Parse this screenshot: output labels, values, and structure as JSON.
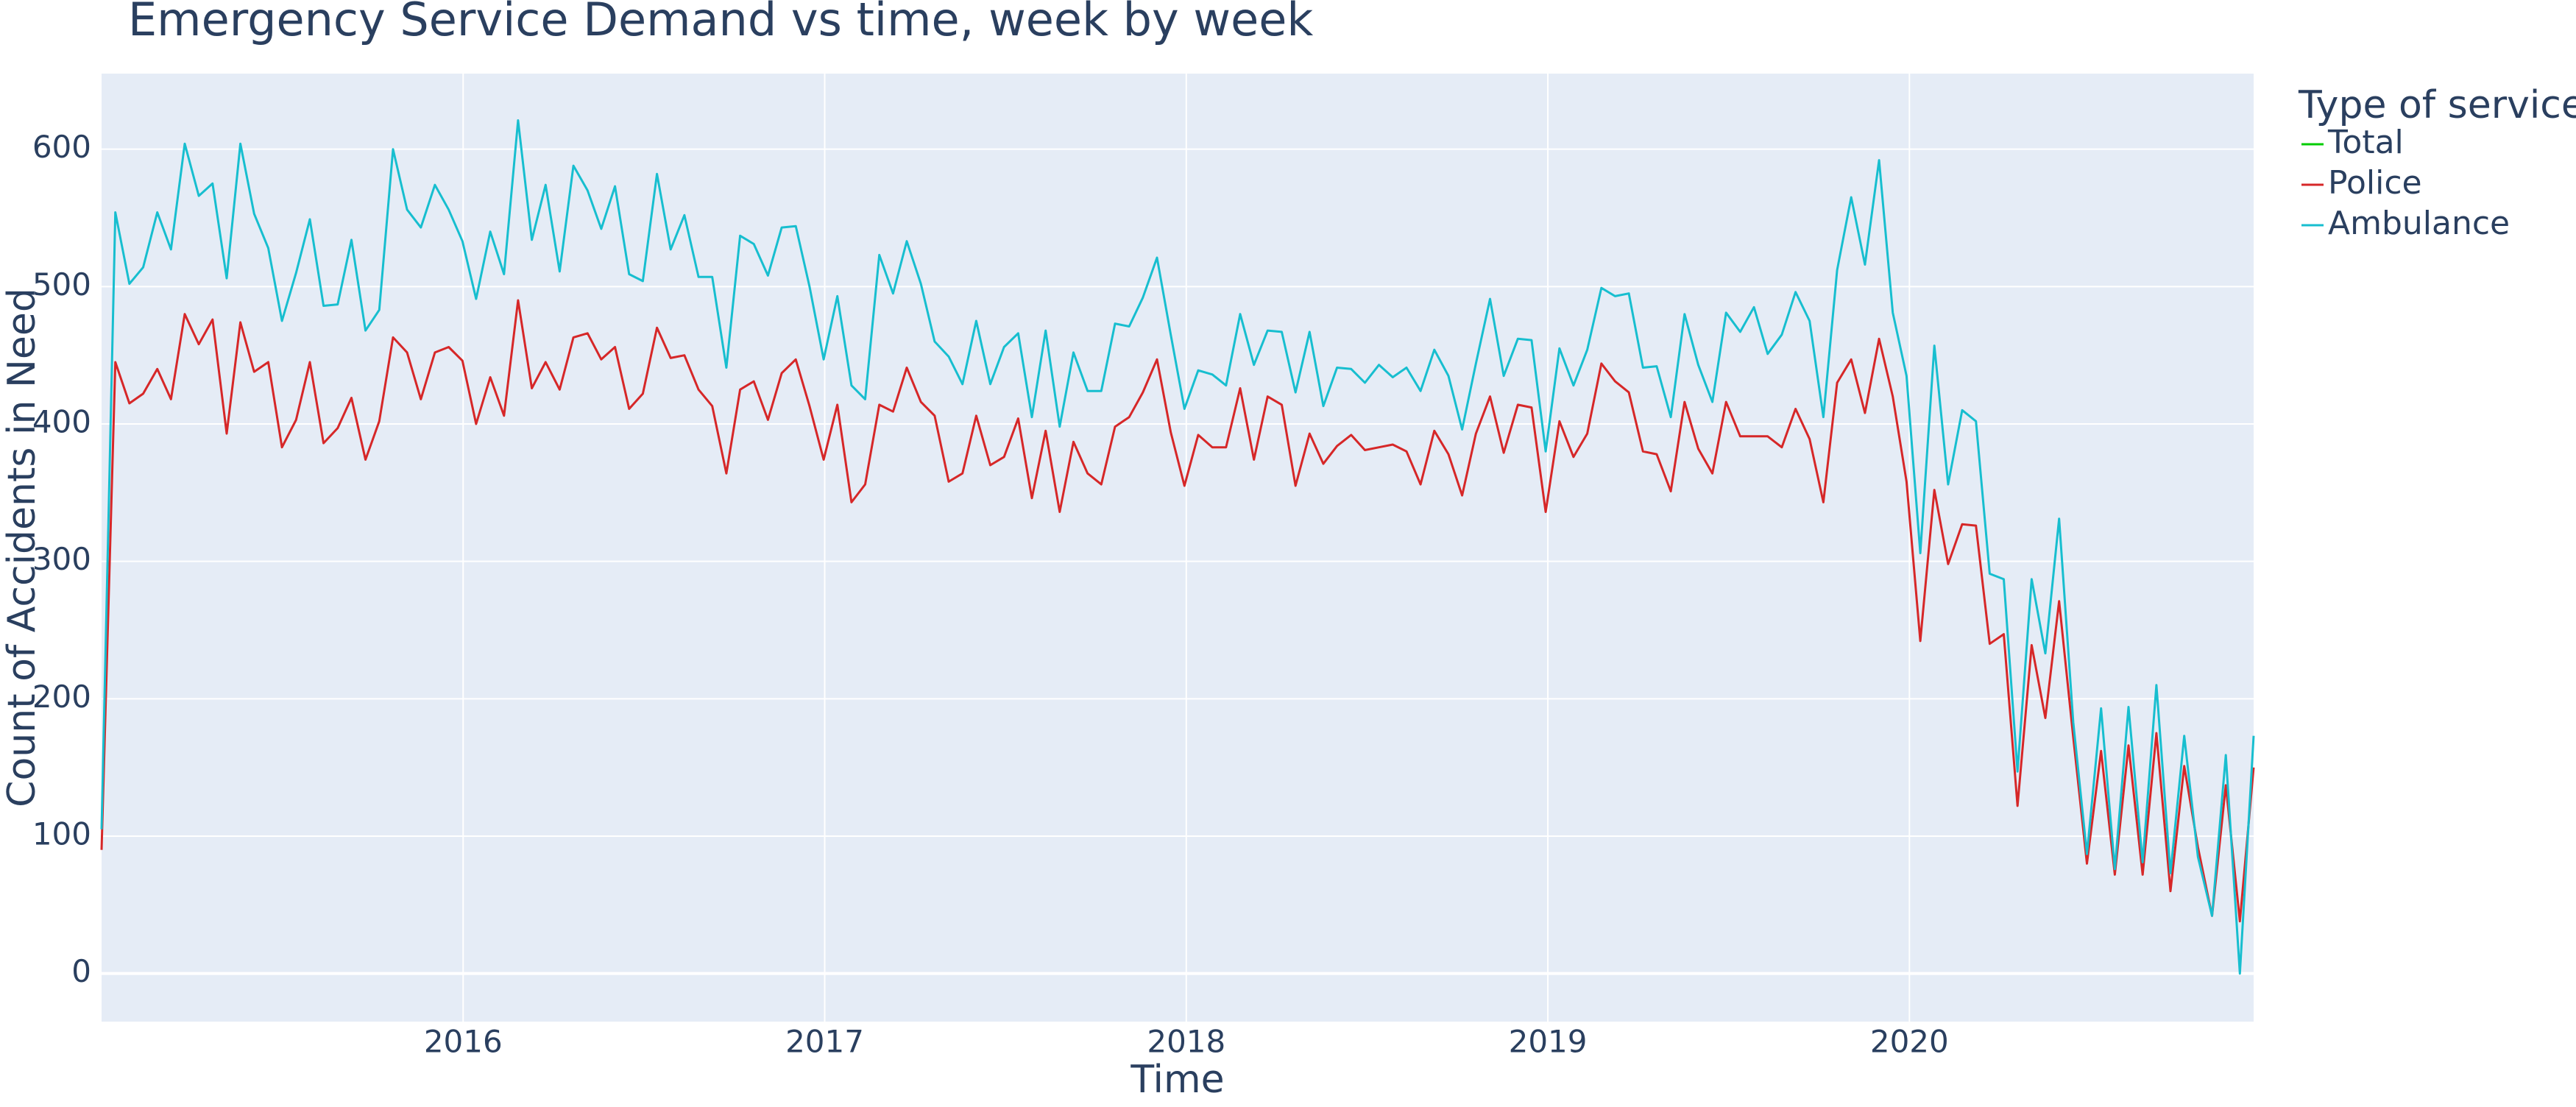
{
  "chart_data": {
    "type": "line",
    "title": "Emergency Service Demand vs time, week by week",
    "x_label": "Time",
    "y_label": "Count of Accidents in Need",
    "legend_title": "Type of service",
    "x": [
      2015,
      2015.038,
      2015.077,
      2015.115,
      2015.154,
      2015.192,
      2015.23,
      2015.269,
      2015.307,
      2015.346,
      2015.384,
      2015.422,
      2015.461,
      2015.499,
      2015.538,
      2015.576,
      2015.614,
      2015.653,
      2015.691,
      2015.73,
      2015.768,
      2015.806,
      2015.845,
      2015.883,
      2015.922,
      2015.96,
      2015.998,
      2016.036,
      2016.075,
      2016.113,
      2016.152,
      2016.19,
      2016.228,
      2016.267,
      2016.305,
      2016.344,
      2016.382,
      2016.42,
      2016.459,
      2016.497,
      2016.536,
      2016.574,
      2016.612,
      2016.651,
      2016.689,
      2016.728,
      2016.766,
      2016.804,
      2016.843,
      2016.881,
      2016.92,
      2016.958,
      2016.997,
      2017.035,
      2017.074,
      2017.112,
      2017.151,
      2017.189,
      2017.227,
      2017.266,
      2017.304,
      2017.343,
      2017.381,
      2017.419,
      2017.458,
      2017.496,
      2017.535,
      2017.573,
      2017.611,
      2017.65,
      2017.688,
      2017.727,
      2017.765,
      2017.803,
      2017.842,
      2017.88,
      2017.919,
      2017.957,
      2017.995,
      2018.033,
      2018.072,
      2018.11,
      2018.149,
      2018.187,
      2018.225,
      2018.264,
      2018.302,
      2018.341,
      2018.379,
      2018.417,
      2018.456,
      2018.494,
      2018.533,
      2018.571,
      2018.609,
      2018.648,
      2018.686,
      2018.725,
      2018.763,
      2018.801,
      2018.84,
      2018.878,
      2018.917,
      2018.955,
      2018.994,
      2019.032,
      2019.071,
      2019.109,
      2019.148,
      2019.186,
      2019.224,
      2019.263,
      2019.301,
      2019.34,
      2019.378,
      2019.416,
      2019.455,
      2019.493,
      2019.532,
      2019.57,
      2019.608,
      2019.647,
      2019.685,
      2019.724,
      2019.762,
      2019.8,
      2019.839,
      2019.877,
      2019.916,
      2019.954,
      2019.992,
      2020.03,
      2020.069,
      2020.107,
      2020.146,
      2020.184,
      2020.222,
      2020.261,
      2020.299,
      2020.338,
      2020.376,
      2020.414,
      2020.453,
      2020.491,
      2020.53,
      2020.568,
      2020.606,
      2020.645,
      2020.683,
      2020.722,
      2020.76,
      2020.798,
      2020.837,
      2020.875,
      2020.914,
      2020.952
    ],
    "series": [
      {
        "name": "Total",
        "color": "#00cc00"
      },
      {
        "name": "Police",
        "color": "#d62728",
        "values": [
          90,
          445,
          415,
          422,
          440,
          418,
          480,
          458,
          476,
          393,
          474,
          438,
          445,
          383,
          403,
          445,
          386,
          397,
          419,
          374,
          402,
          463,
          452,
          418,
          452,
          456,
          446,
          400,
          434,
          406,
          490,
          426,
          445,
          425,
          463,
          466,
          447,
          456,
          411,
          422,
          470,
          448,
          450,
          425,
          413,
          364,
          425,
          431,
          403,
          437,
          447,
          413,
          374,
          414,
          343,
          356,
          414,
          409,
          441,
          416,
          406,
          358,
          364,
          406,
          370,
          376,
          404,
          346,
          395,
          336,
          387,
          364,
          356,
          398,
          405,
          423,
          447,
          394,
          355,
          392,
          383,
          383,
          426,
          374,
          420,
          414,
          355,
          393,
          371,
          384,
          392,
          381,
          383,
          385,
          380,
          356,
          395,
          378,
          348,
          393,
          420,
          379,
          414,
          412,
          336,
          402,
          376,
          393,
          444,
          431,
          423,
          380,
          378,
          351,
          416,
          382,
          364,
          416,
          391,
          391,
          391,
          383,
          411,
          389,
          343,
          430,
          447,
          408,
          462,
          420,
          358,
          242,
          352,
          298,
          327,
          326,
          240,
          247,
          122,
          239,
          186,
          271,
          172,
          80,
          162,
          72,
          166,
          72,
          175,
          60,
          151,
          92,
          42,
          137,
          38,
          150
        ]
      },
      {
        "name": "Ambulance",
        "color": "#17becf",
        "values": [
          105,
          554,
          502,
          514,
          554,
          527,
          604,
          566,
          575,
          506,
          604,
          553,
          528,
          475,
          510,
          549,
          486,
          487,
          534,
          468,
          483,
          600,
          556,
          543,
          574,
          556,
          533,
          491,
          540,
          509,
          621,
          534,
          574,
          511,
          588,
          570,
          542,
          573,
          509,
          504,
          582,
          527,
          552,
          507,
          507,
          441,
          537,
          531,
          508,
          543,
          544,
          500,
          447,
          493,
          428,
          418,
          523,
          495,
          533,
          502,
          460,
          449,
          429,
          475,
          429,
          456,
          466,
          405,
          468,
          398,
          452,
          424,
          424,
          473,
          471,
          492,
          521,
          465,
          411,
          439,
          436,
          428,
          480,
          443,
          468,
          467,
          423,
          467,
          413,
          441,
          440,
          430,
          443,
          434,
          441,
          424,
          454,
          435,
          396,
          444,
          491,
          435,
          462,
          461,
          380,
          455,
          428,
          454,
          499,
          493,
          495,
          441,
          442,
          405,
          480,
          443,
          416,
          481,
          467,
          485,
          451,
          465,
          496,
          475,
          405,
          512,
          565,
          516,
          592,
          481,
          435,
          306,
          457,
          356,
          410,
          402,
          291,
          287,
          147,
          287,
          233,
          331,
          183,
          87,
          193,
          76,
          194,
          81,
          210,
          73,
          173,
          85,
          42,
          159,
          0,
          173
        ]
      }
    ],
    "xlim": [
      2015,
      2020.952
    ],
    "xticks": [
      2016,
      2017,
      2018,
      2019,
      2020
    ],
    "ylim": [
      -35,
      655
    ],
    "yticks": [
      0,
      100,
      200,
      300,
      400,
      500,
      600
    ],
    "grid": true,
    "legend": "outside-right"
  }
}
